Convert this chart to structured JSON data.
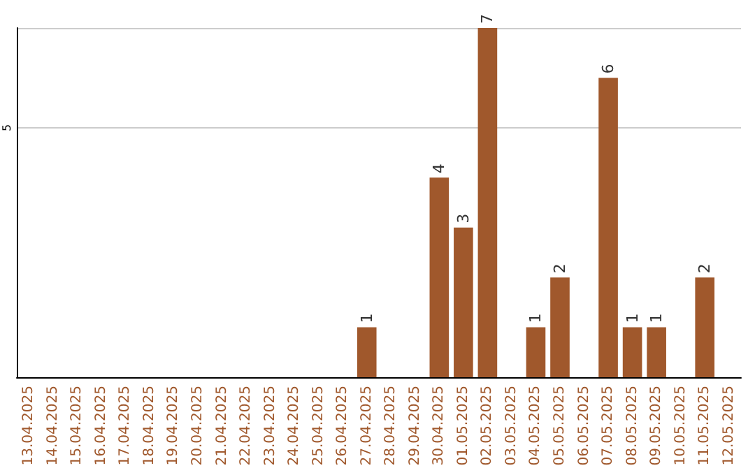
{
  "chart_data": {
    "type": "bar",
    "categories": [
      "13.04.2025",
      "14.04.2025",
      "15.04.2025",
      "16.04.2025",
      "17.04.2025",
      "18.04.2025",
      "19.04.2025",
      "20.04.2025",
      "21.04.2025",
      "22.04.2025",
      "23.04.2025",
      "24.04.2025",
      "25.04.2025",
      "26.04.2025",
      "27.04.2025",
      "28.04.2025",
      "29.04.2025",
      "30.04.2025",
      "01.05.2025",
      "02.05.2025",
      "03.05.2025",
      "04.05.2025",
      "05.05.2025",
      "06.05.2025",
      "07.05.2025",
      "08.05.2025",
      "09.05.2025",
      "10.05.2025",
      "11.05.2025",
      "12.05.2025"
    ],
    "values": [
      null,
      null,
      null,
      null,
      null,
      null,
      null,
      null,
      null,
      null,
      null,
      null,
      null,
      null,
      1,
      null,
      null,
      4,
      3,
      7,
      null,
      1,
      2,
      null,
      6,
      1,
      1,
      null,
      2,
      null
    ],
    "color": "#a0582c",
    "ylim": [
      0,
      7
    ],
    "yticks": [
      5
    ],
    "grid": "y",
    "data_labels": true
  }
}
